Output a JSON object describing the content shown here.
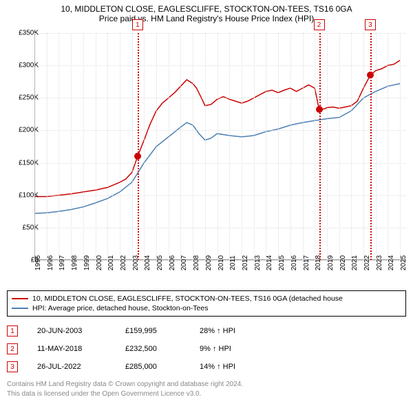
{
  "header": {
    "line1": "10, MIDDLETON CLOSE, EAGLESCLIFFE, STOCKTON-ON-TEES, TS16 0GA",
    "line2": "Price paid vs. HM Land Registry's House Price Index (HPI)"
  },
  "chart": {
    "type": "line",
    "background_color": "#ffffff",
    "grid_color": "#dddddd",
    "axis_color": "#888888",
    "xlim": [
      1995,
      2025.5
    ],
    "ylim": [
      0,
      350000
    ],
    "ytick_step": 50000,
    "yticks": [
      "£0",
      "£50K",
      "£100K",
      "£150K",
      "£200K",
      "£250K",
      "£300K",
      "£350K"
    ],
    "xticks": [
      1995,
      1996,
      1997,
      1998,
      1999,
      2000,
      2001,
      2002,
      2003,
      2004,
      2005,
      2006,
      2007,
      2008,
      2009,
      2010,
      2011,
      2012,
      2013,
      2014,
      2015,
      2016,
      2017,
      2018,
      2019,
      2020,
      2021,
      2022,
      2023,
      2024,
      2025
    ],
    "series": [
      {
        "name": "property",
        "color": "#cc0000",
        "width": 1.5,
        "data": [
          [
            1995,
            98000
          ],
          [
            1996,
            98000
          ],
          [
            1997,
            100000
          ],
          [
            1998,
            102000
          ],
          [
            1999,
            105000
          ],
          [
            2000,
            108000
          ],
          [
            2001,
            112000
          ],
          [
            2002,
            120000
          ],
          [
            2002.5,
            125000
          ],
          [
            2003,
            135000
          ],
          [
            2003.47,
            159995
          ],
          [
            2004,
            185000
          ],
          [
            2004.5,
            210000
          ],
          [
            2005,
            230000
          ],
          [
            2005.5,
            242000
          ],
          [
            2006,
            250000
          ],
          [
            2006.5,
            258000
          ],
          [
            2007,
            268000
          ],
          [
            2007.5,
            278000
          ],
          [
            2008,
            272000
          ],
          [
            2008.3,
            265000
          ],
          [
            2008.7,
            250000
          ],
          [
            2009,
            238000
          ],
          [
            2009.5,
            240000
          ],
          [
            2010,
            248000
          ],
          [
            2010.5,
            252000
          ],
          [
            2011,
            248000
          ],
          [
            2011.5,
            245000
          ],
          [
            2012,
            242000
          ],
          [
            2012.5,
            245000
          ],
          [
            2013,
            250000
          ],
          [
            2013.5,
            255000
          ],
          [
            2014,
            260000
          ],
          [
            2014.5,
            262000
          ],
          [
            2015,
            258000
          ],
          [
            2015.5,
            262000
          ],
          [
            2016,
            265000
          ],
          [
            2016.5,
            260000
          ],
          [
            2017,
            265000
          ],
          [
            2017.5,
            270000
          ],
          [
            2018,
            265000
          ],
          [
            2018.36,
            232500
          ],
          [
            2018.8,
            233000
          ],
          [
            2019,
            235000
          ],
          [
            2019.5,
            236000
          ],
          [
            2020,
            234000
          ],
          [
            2020.5,
            236000
          ],
          [
            2021,
            238000
          ],
          [
            2021.5,
            245000
          ],
          [
            2022,
            265000
          ],
          [
            2022.56,
            285000
          ],
          [
            2023,
            292000
          ],
          [
            2023.5,
            295000
          ],
          [
            2024,
            300000
          ],
          [
            2024.5,
            302000
          ],
          [
            2025,
            308000
          ]
        ]
      },
      {
        "name": "hpi",
        "color": "#4a7fb5",
        "width": 1.5,
        "data": [
          [
            1995,
            72000
          ],
          [
            1996,
            73000
          ],
          [
            1997,
            75000
          ],
          [
            1998,
            78000
          ],
          [
            1999,
            82000
          ],
          [
            2000,
            88000
          ],
          [
            2001,
            95000
          ],
          [
            2002,
            105000
          ],
          [
            2003,
            120000
          ],
          [
            2004,
            150000
          ],
          [
            2005,
            175000
          ],
          [
            2006,
            190000
          ],
          [
            2007,
            205000
          ],
          [
            2007.5,
            212000
          ],
          [
            2008,
            208000
          ],
          [
            2008.5,
            195000
          ],
          [
            2009,
            185000
          ],
          [
            2009.5,
            188000
          ],
          [
            2010,
            195000
          ],
          [
            2011,
            192000
          ],
          [
            2012,
            190000
          ],
          [
            2013,
            192000
          ],
          [
            2014,
            198000
          ],
          [
            2015,
            202000
          ],
          [
            2016,
            208000
          ],
          [
            2017,
            212000
          ],
          [
            2018,
            215000
          ],
          [
            2019,
            218000
          ],
          [
            2020,
            220000
          ],
          [
            2021,
            230000
          ],
          [
            2022,
            250000
          ],
          [
            2023,
            260000
          ],
          [
            2024,
            268000
          ],
          [
            2025,
            272000
          ]
        ]
      }
    ],
    "markers": [
      {
        "n": "1",
        "x": 2003.47,
        "y": 159995,
        "color": "#cc0000"
      },
      {
        "n": "2",
        "x": 2018.36,
        "y": 232500,
        "color": "#cc0000"
      },
      {
        "n": "3",
        "x": 2022.56,
        "y": 285000,
        "color": "#cc0000"
      }
    ]
  },
  "legend": {
    "items": [
      {
        "color": "#cc0000",
        "label": "10, MIDDLETON CLOSE, EAGLESCLIFFE, STOCKTON-ON-TEES, TS16 0GA (detached house"
      },
      {
        "color": "#4a7fb5",
        "label": "HPI: Average price, detached house, Stockton-on-Tees"
      }
    ]
  },
  "sales": [
    {
      "n": "1",
      "date": "20-JUN-2003",
      "price": "£159,995",
      "pct": "28% ↑ HPI"
    },
    {
      "n": "2",
      "date": "11-MAY-2018",
      "price": "£232,500",
      "pct": "9% ↑ HPI"
    },
    {
      "n": "3",
      "date": "26-JUL-2022",
      "price": "£285,000",
      "pct": "14% ↑ HPI"
    }
  ],
  "footer": {
    "line1": "Contains HM Land Registry data © Crown copyright and database right 2024.",
    "line2": "This data is licensed under the Open Government Licence v3.0."
  }
}
